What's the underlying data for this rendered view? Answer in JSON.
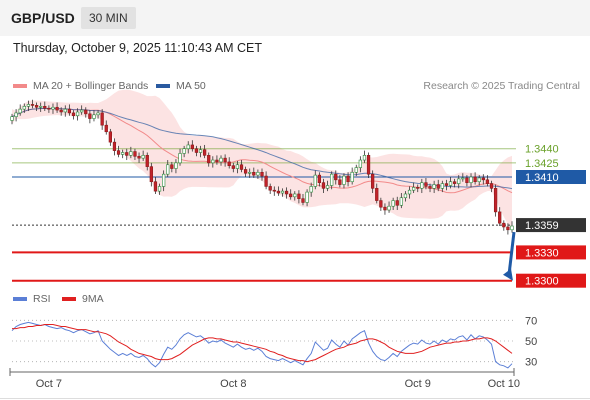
{
  "header": {
    "pair": "GBP/USD",
    "timeframe": "30 MIN"
  },
  "datetime": "Thursday, October 9, 2025 11:10:43 AM CET",
  "legend": {
    "ma20": {
      "label": "MA 20 + Bollinger Bands",
      "color": "#f28a8a"
    },
    "ma50": {
      "label": "MA 50",
      "color": "#2a5aa0"
    },
    "credit": "Research © 2025 Trading Central"
  },
  "rsi_legend": {
    "rsi": {
      "label": "RSI",
      "color": "#5b7fd6"
    },
    "ma9": {
      "label": "9MA",
      "color": "#e02020"
    }
  },
  "chart_data": [
    {
      "type": "candlestick",
      "title": "",
      "ylim": [
        1.3288,
        1.3497
      ],
      "x_ticks": [
        {
          "label": "Oct 7",
          "index": 9
        },
        {
          "label": "Oct 8",
          "index": 54
        },
        {
          "label": "Oct 9",
          "index": 99
        },
        {
          "label": "Oct 10",
          "index": 120
        }
      ],
      "levels": [
        {
          "label": "1.3440",
          "value": 1.344,
          "style": "text",
          "color": "#6aa12a"
        },
        {
          "label": "1.3425",
          "value": 1.3425,
          "style": "text",
          "color": "#6aa12a"
        },
        {
          "label": "1.3410",
          "value": 1.341,
          "style": "box",
          "color": "#1f5aa6"
        },
        {
          "label": "1.3359",
          "value": 1.3359,
          "style": "box",
          "color": "#333333"
        },
        {
          "label": "1.3330",
          "value": 1.333,
          "style": "box",
          "color": "#e01818"
        },
        {
          "label": "1.3300",
          "value": 1.33,
          "style": "box",
          "color": "#e01818"
        }
      ],
      "closes": [
        1.3474,
        1.3478,
        1.3482,
        1.3485,
        1.3487,
        1.3486,
        1.3484,
        1.3485,
        1.3483,
        1.3482,
        1.3484,
        1.3481,
        1.3479,
        1.3482,
        1.3478,
        1.3475,
        1.3479,
        1.3481,
        1.3477,
        1.3472,
        1.3476,
        1.3478,
        1.3465,
        1.3458,
        1.3447,
        1.3438,
        1.3434,
        1.3436,
        1.3433,
        1.3437,
        1.3432,
        1.343,
        1.3433,
        1.3421,
        1.3405,
        1.3395,
        1.34,
        1.3413,
        1.3423,
        1.3419,
        1.3425,
        1.3435,
        1.344,
        1.3444,
        1.344,
        1.3436,
        1.3439,
        1.3433,
        1.3425,
        1.3428,
        1.3426,
        1.343,
        1.3426,
        1.3422,
        1.3419,
        1.3423,
        1.3418,
        1.3414,
        1.3415,
        1.3412,
        1.3415,
        1.3411,
        1.34,
        1.3396,
        1.3395,
        1.3393,
        1.3395,
        1.3392,
        1.3389,
        1.3392,
        1.3387,
        1.3383,
        1.3394,
        1.34,
        1.3412,
        1.3404,
        1.3398,
        1.3401,
        1.3413,
        1.3407,
        1.3402,
        1.3411,
        1.3405,
        1.3415,
        1.342,
        1.3428,
        1.3433,
        1.3413,
        1.3398,
        1.3385,
        1.3378,
        1.3375,
        1.3379,
        1.3385,
        1.338,
        1.3388,
        1.3392,
        1.3396,
        1.3399,
        1.3398,
        1.3404,
        1.34,
        1.3398,
        1.3402,
        1.3398,
        1.3403,
        1.3401,
        1.3405,
        1.3403,
        1.3408,
        1.3409,
        1.3404,
        1.341,
        1.3405,
        1.3409,
        1.3407,
        1.3403,
        1.3398,
        1.3373,
        1.3361,
        1.3357,
        1.3354,
        1.3358
      ]
    },
    {
      "type": "line",
      "title": "RSI",
      "ylim": [
        20,
        80
      ],
      "y_ticks": [
        70,
        50,
        30
      ],
      "rsi": [
        60,
        64,
        66,
        67,
        68,
        67,
        66,
        65,
        66,
        64,
        63,
        62,
        63,
        61,
        60,
        58,
        60,
        61,
        59,
        57,
        58,
        60,
        50,
        46,
        42,
        39,
        36,
        38,
        36,
        38,
        35,
        34,
        36,
        33,
        28,
        25,
        29,
        37,
        44,
        42,
        46,
        52,
        56,
        58,
        56,
        54,
        55,
        52,
        48,
        50,
        49,
        51,
        48,
        46,
        44,
        47,
        44,
        42,
        43,
        41,
        43,
        40,
        35,
        33,
        32,
        31,
        33,
        31,
        29,
        31,
        29,
        27,
        33,
        38,
        49,
        45,
        41,
        43,
        51,
        47,
        44,
        50,
        46,
        52,
        55,
        58,
        60,
        48,
        40,
        35,
        32,
        31,
        34,
        38,
        35,
        40,
        43,
        46,
        48,
        47,
        51,
        48,
        47,
        50,
        47,
        51,
        49,
        52,
        51,
        54,
        55,
        51,
        56,
        52,
        55,
        54,
        51,
        47,
        30,
        27,
        26,
        24,
        28
      ],
      "ma9": [
        62,
        62,
        63,
        63,
        64,
        64,
        65,
        65,
        66,
        66,
        66,
        65,
        64,
        64,
        63,
        62,
        61,
        61,
        61,
        60,
        59,
        59,
        58,
        57,
        55,
        52,
        49,
        47,
        45,
        42,
        40,
        38,
        37,
        36,
        35,
        33,
        32,
        32,
        32,
        33,
        35,
        37,
        40,
        43,
        46,
        48,
        50,
        52,
        53,
        53,
        52,
        52,
        51,
        50,
        49,
        49,
        48,
        47,
        46,
        45,
        44,
        43,
        42,
        40,
        39,
        37,
        36,
        34,
        33,
        32,
        31,
        31,
        30,
        31,
        32,
        34,
        36,
        38,
        40,
        42,
        43,
        44,
        46,
        47,
        48,
        50,
        51,
        52,
        52,
        51,
        49,
        47,
        44,
        42,
        40,
        39,
        38,
        38,
        38,
        39,
        40,
        42,
        44,
        45,
        46,
        47,
        48,
        48,
        49,
        49,
        50,
        50,
        51,
        52,
        52,
        53,
        53,
        52,
        50,
        47,
        44,
        41,
        38
      ]
    }
  ]
}
